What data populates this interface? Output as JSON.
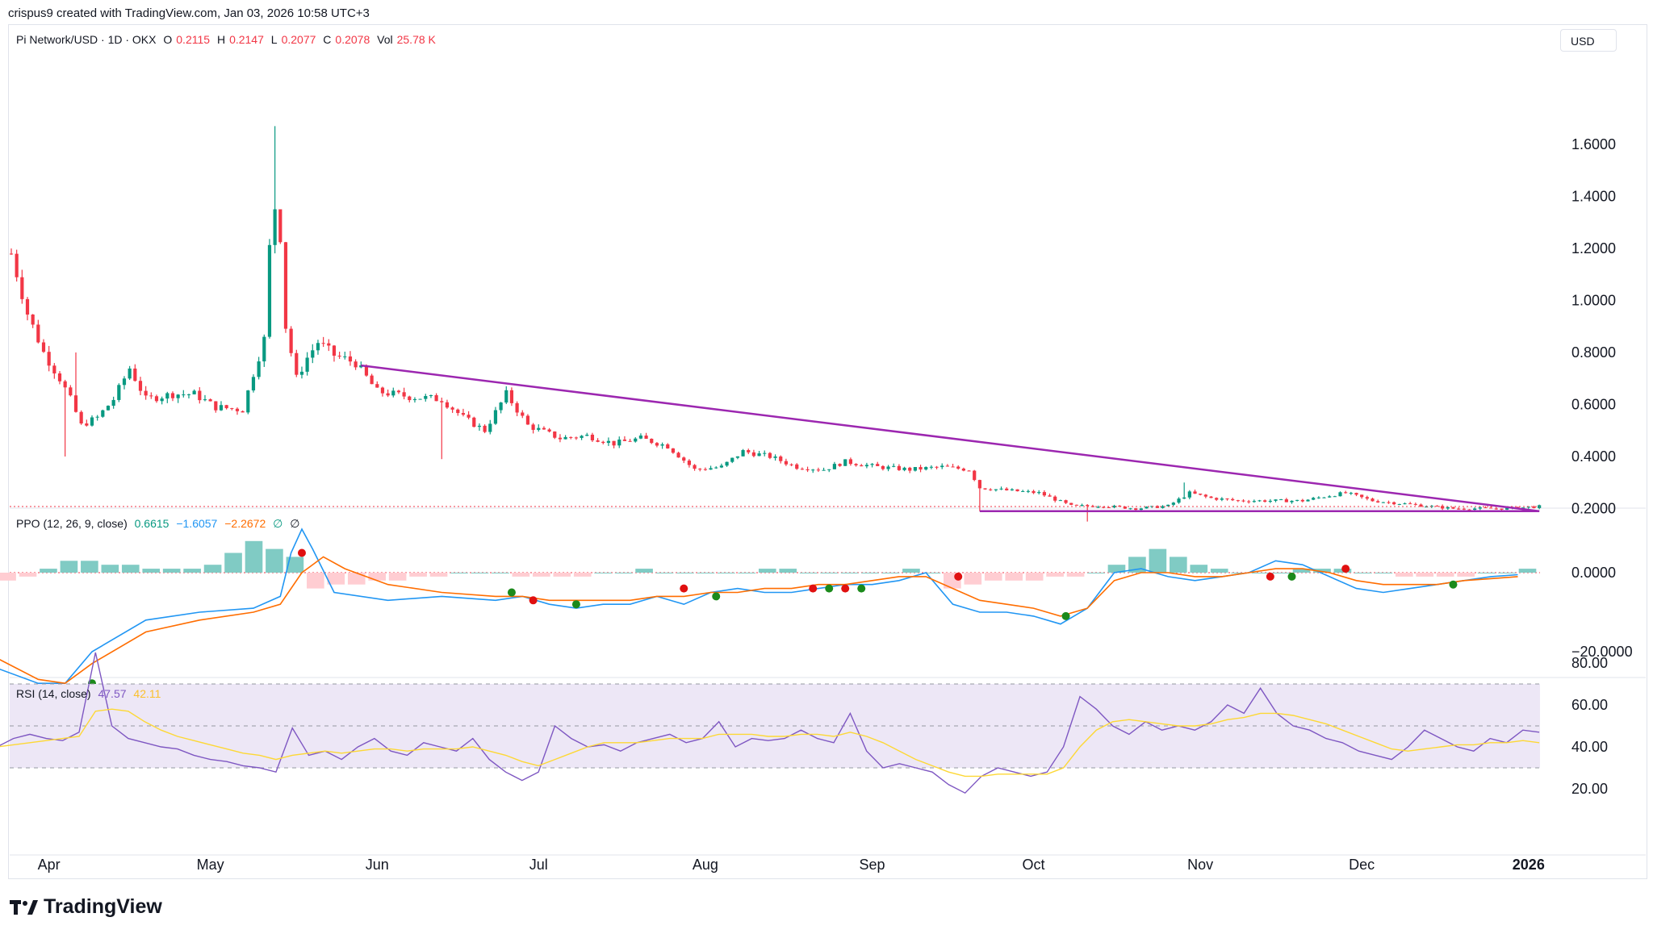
{
  "header": {
    "text": "crispus9 created with TradingView.com, Jan 03, 2026 10:58 UTC+3"
  },
  "legend_main": {
    "symbol": "Pi Network/USD · 1D · OKX",
    "o_label": "O",
    "o_value": "0.2115",
    "h_label": "H",
    "h_value": "0.2147",
    "l_label": "L",
    "l_value": "0.2077",
    "c_label": "C",
    "c_value": "0.2078",
    "vol_label": "Vol",
    "vol_value": "25.78 K"
  },
  "legend_ppo": {
    "name": "PPO (12, 26, 9, close)",
    "v1": "0.6615",
    "v2": "−1.6057",
    "v3": "−2.2672",
    "v4": "∅",
    "v5": "∅"
  },
  "legend_rsi": {
    "name": "RSI (14, close)",
    "v1": "47.57",
    "v2": "42.11"
  },
  "currency_label": "USD",
  "brand": {
    "name": "TradingView"
  },
  "colors": {
    "up": "#089981",
    "down": "#f23645",
    "trendline": "#9c27b0",
    "ppo": "#2196f3",
    "signal": "#ff6d00",
    "rsi": "#7e57c2",
    "rsi_ma": "#fdd835",
    "rsi_band": "#ede7f6"
  },
  "chart_data": [
    {
      "type": "candlestick",
      "title": "Pi Network/USD · 1D · OKX",
      "y_ticks": [
        "1.6000",
        "1.4000",
        "1.2000",
        "1.0000",
        "0.8000",
        "0.6000",
        "0.4000",
        "0.2000"
      ],
      "ylim": [
        0.0,
        1.8
      ],
      "x_ticks": [
        "Apr",
        "May",
        "Jun",
        "Jul",
        "Aug",
        "Sep",
        "Oct",
        "Nov",
        "Dec",
        "2026"
      ],
      "trend_points": [
        [
          "Mar 25",
          1.18
        ],
        [
          "Mar 28",
          0.95
        ],
        [
          "Mar 31",
          0.8
        ],
        [
          "Apr 3",
          0.7
        ],
        [
          "Apr 5",
          0.62
        ],
        [
          "Apr 7",
          0.52
        ],
        [
          "Apr 10",
          0.55
        ],
        [
          "Apr 13",
          0.62
        ],
        [
          "Apr 16",
          0.74
        ],
        [
          "Apr 19",
          0.62
        ],
        [
          "Apr 24",
          0.64
        ],
        [
          "Apr 28",
          0.64
        ],
        [
          "May 2",
          0.59
        ],
        [
          "May 7",
          0.58
        ],
        [
          "May 9",
          0.72
        ],
        [
          "May 11",
          0.85
        ],
        [
          "May 12",
          1.2
        ],
        [
          "May 13",
          1.36
        ],
        [
          "May 14",
          1.25
        ],
        [
          "May 15",
          0.9
        ],
        [
          "May 17",
          0.7
        ],
        [
          "May 19",
          0.78
        ],
        [
          "May 21",
          0.84
        ],
        [
          "May 24",
          0.79
        ],
        [
          "May 28",
          0.76
        ],
        [
          "Jun 1",
          0.65
        ],
        [
          "Jun 7",
          0.63
        ],
        [
          "Jun 13",
          0.62
        ],
        [
          "Jun 17",
          0.55
        ],
        [
          "Jun 21",
          0.5
        ],
        [
          "Jun 25",
          0.64
        ],
        [
          "Jun 29",
          0.52
        ],
        [
          "Jul 5",
          0.47
        ],
        [
          "Jul 10",
          0.48
        ],
        [
          "Jul 15",
          0.45
        ],
        [
          "Jul 20",
          0.47
        ],
        [
          "Jul 25",
          0.44
        ],
        [
          "Jul 30",
          0.35
        ],
        [
          "Aug 4",
          0.36
        ],
        [
          "Aug 8",
          0.42
        ],
        [
          "Aug 13",
          0.4
        ],
        [
          "Aug 18",
          0.36
        ],
        [
          "Aug 23",
          0.35
        ],
        [
          "Aug 27",
          0.38
        ],
        [
          "Sep 2",
          0.36
        ],
        [
          "Sep 8",
          0.35
        ],
        [
          "Sep 14",
          0.36
        ],
        [
          "Sep 19",
          0.35
        ],
        [
          "Sep 21",
          0.28
        ],
        [
          "Sep 26",
          0.27
        ],
        [
          "Oct 2",
          0.26
        ],
        [
          "Oct 8",
          0.21
        ],
        [
          "Oct 14",
          0.21
        ],
        [
          "Oct 20",
          0.2
        ],
        [
          "Oct 26",
          0.21
        ],
        [
          "Oct 30",
          0.26
        ],
        [
          "Nov 3",
          0.24
        ],
        [
          "Nov 8",
          0.23
        ],
        [
          "Nov 14",
          0.23
        ],
        [
          "Nov 20",
          0.23
        ],
        [
          "Nov 25",
          0.25
        ],
        [
          "Nov 28",
          0.26
        ],
        [
          "Dec 3",
          0.23
        ],
        [
          "Dec 8",
          0.22
        ],
        [
          "Dec 13",
          0.21
        ],
        [
          "Dec 18",
          0.2
        ],
        [
          "Dec 23",
          0.2
        ],
        [
          "Dec 28",
          0.2
        ],
        [
          "Jan 3",
          0.2078
        ]
      ],
      "last_price": 0.2078,
      "annotations": {
        "trendline": [
          [
            "May 29",
            0.75
          ],
          [
            "Jan 3",
            0.19
          ]
        ],
        "support": [
          [
            "Sep 21",
            0.19
          ],
          [
            "Jan 3",
            0.19
          ]
        ]
      }
    },
    {
      "type": "line",
      "title": "PPO (12, 26, 9, close)",
      "y_ticks": [
        "0.0000",
        "−20.0000"
      ],
      "ylim": [
        -36,
        19
      ],
      "series": [
        {
          "name": "PPO",
          "points": [
            [
              -15,
              -19
            ],
            [
              -5,
              -23
            ],
            [
              5,
              -28
            ],
            [
              10,
              -28
            ],
            [
              15,
              -20
            ],
            [
              25,
              -12
            ],
            [
              35,
              -10
            ],
            [
              45,
              -9
            ],
            [
              50,
              -6
            ],
            [
              52,
              5
            ],
            [
              54,
              11
            ],
            [
              56,
              6
            ],
            [
              60,
              -5
            ],
            [
              70,
              -7
            ],
            [
              80,
              -6
            ],
            [
              90,
              -7
            ],
            [
              95,
              -6
            ],
            [
              100,
              -8
            ],
            [
              105,
              -9
            ],
            [
              110,
              -8
            ],
            [
              115,
              -8
            ],
            [
              120,
              -6
            ],
            [
              125,
              -8
            ],
            [
              130,
              -5
            ],
            [
              135,
              -4
            ],
            [
              140,
              -5
            ],
            [
              145,
              -5
            ],
            [
              150,
              -4
            ],
            [
              155,
              -3
            ],
            [
              160,
              -3
            ],
            [
              165,
              -2
            ],
            [
              170,
              0
            ],
            [
              175,
              -8
            ],
            [
              180,
              -10
            ],
            [
              185,
              -10
            ],
            [
              190,
              -11
            ],
            [
              195,
              -13
            ],
            [
              200,
              -9
            ],
            [
              205,
              0
            ],
            [
              210,
              1
            ],
            [
              215,
              -1
            ],
            [
              220,
              -2
            ],
            [
              225,
              -1
            ],
            [
              230,
              0
            ],
            [
              235,
              3
            ],
            [
              240,
              2
            ],
            [
              245,
              -1
            ],
            [
              250,
              -4
            ],
            [
              255,
              -5
            ],
            [
              260,
              -4
            ],
            [
              265,
              -3
            ],
            [
              270,
              -2
            ],
            [
              275,
              -1
            ],
            [
              280,
              -0.5
            ]
          ]
        },
        {
          "name": "Signal",
          "points": [
            [
              -12,
              -15
            ],
            [
              -5,
              -20
            ],
            [
              5,
              -27
            ],
            [
              10,
              -28
            ],
            [
              15,
              -23
            ],
            [
              25,
              -15
            ],
            [
              35,
              -12
            ],
            [
              45,
              -10
            ],
            [
              50,
              -8
            ],
            [
              54,
              0
            ],
            [
              58,
              4
            ],
            [
              62,
              1
            ],
            [
              70,
              -3
            ],
            [
              80,
              -5
            ],
            [
              90,
              -6
            ],
            [
              95,
              -6
            ],
            [
              100,
              -7
            ],
            [
              105,
              -7
            ],
            [
              110,
              -7
            ],
            [
              115,
              -7
            ],
            [
              120,
              -6
            ],
            [
              125,
              -6
            ],
            [
              130,
              -5
            ],
            [
              135,
              -5
            ],
            [
              140,
              -4
            ],
            [
              145,
              -4
            ],
            [
              150,
              -3
            ],
            [
              155,
              -3
            ],
            [
              160,
              -2
            ],
            [
              165,
              -1
            ],
            [
              170,
              -1
            ],
            [
              175,
              -4
            ],
            [
              180,
              -7
            ],
            [
              185,
              -8
            ],
            [
              190,
              -9
            ],
            [
              195,
              -11
            ],
            [
              200,
              -9
            ],
            [
              205,
              -2
            ],
            [
              210,
              0
            ],
            [
              215,
              0
            ],
            [
              220,
              -1
            ],
            [
              225,
              -1
            ],
            [
              230,
              0
            ],
            [
              235,
              1
            ],
            [
              240,
              1
            ],
            [
              245,
              0
            ],
            [
              250,
              -2
            ],
            [
              255,
              -3
            ],
            [
              260,
              -3
            ],
            [
              265,
              -3
            ],
            [
              270,
              -2
            ],
            [
              275,
              -1.5
            ],
            [
              280,
              -1
            ]
          ]
        }
      ],
      "histogram_values": [
        -4,
        -3,
        -2,
        -1,
        1,
        3,
        3,
        2,
        2,
        1,
        1,
        1,
        2,
        5,
        8,
        6,
        4,
        -4,
        -3,
        -3,
        -2,
        -2,
        -1,
        -1,
        0,
        0,
        0,
        -1,
        -1,
        -1,
        -1,
        0,
        0,
        1,
        0,
        0,
        0,
        0,
        0,
        1,
        1,
        0,
        0,
        0,
        0,
        0,
        1,
        0,
        -4,
        -3,
        -2,
        -2,
        -2,
        -1,
        -1,
        0,
        2,
        4,
        6,
        4,
        2,
        1,
        0,
        0,
        0,
        1,
        1,
        1,
        0,
        0,
        -1,
        -1,
        -1,
        -1,
        0,
        0,
        1
      ]
    },
    {
      "type": "line",
      "title": "RSI (14, close)",
      "y_ticks": [
        "80.00",
        "60.00",
        "40.00",
        "20.00"
      ],
      "ylim": [
        12,
        90
      ],
      "bands": [
        30,
        50,
        70
      ],
      "series": [
        {
          "name": "RSI",
          "values": [
            48,
            45,
            42,
            40,
            38,
            36,
            38,
            40,
            44,
            46,
            44,
            43,
            47,
            85,
            50,
            44,
            42,
            40,
            39,
            36,
            34,
            33,
            31,
            30,
            28,
            49,
            36,
            38,
            34,
            40,
            44,
            38,
            36,
            42,
            40,
            38,
            44,
            34,
            28,
            24,
            28,
            50,
            44,
            40,
            41,
            38,
            42,
            44,
            46,
            42,
            44,
            52,
            40,
            44,
            43,
            44,
            48,
            44,
            42,
            56,
            38,
            30,
            32,
            30,
            28,
            22,
            18,
            26,
            30,
            28,
            26,
            28,
            40,
            64,
            58,
            50,
            46,
            52,
            48,
            50,
            48,
            52,
            60,
            56,
            68,
            56,
            50,
            48,
            44,
            42,
            38,
            36,
            34,
            40,
            48,
            44,
            40,
            38,
            44,
            42,
            48,
            47
          ]
        },
        {
          "name": "RSI MA",
          "values": [
            50,
            48,
            46,
            44,
            42,
            41,
            40,
            40,
            41,
            42,
            43,
            44,
            45,
            57,
            58,
            57,
            52,
            48,
            45,
            43,
            41,
            39,
            37,
            36,
            34,
            36,
            37,
            38,
            37,
            38,
            39,
            39,
            38,
            39,
            39,
            39,
            40,
            38,
            36,
            33,
            31,
            34,
            37,
            40,
            42,
            42,
            42,
            43,
            44,
            44,
            44,
            46,
            46,
            46,
            45,
            45,
            46,
            46,
            45,
            47,
            45,
            42,
            38,
            34,
            31,
            28,
            26,
            26,
            27,
            27,
            27,
            27,
            30,
            40,
            48,
            52,
            53,
            52,
            51,
            50,
            50,
            51,
            53,
            54,
            56,
            56,
            55,
            53,
            51,
            48,
            45,
            42,
            39,
            38,
            39,
            40,
            41,
            41,
            42,
            42,
            43,
            42
          ]
        }
      ],
      "x_ticks": [
        "Apr",
        "May",
        "Jun",
        "Jul",
        "Aug",
        "Sep",
        "Oct",
        "Nov",
        "Dec",
        "2026"
      ]
    }
  ]
}
